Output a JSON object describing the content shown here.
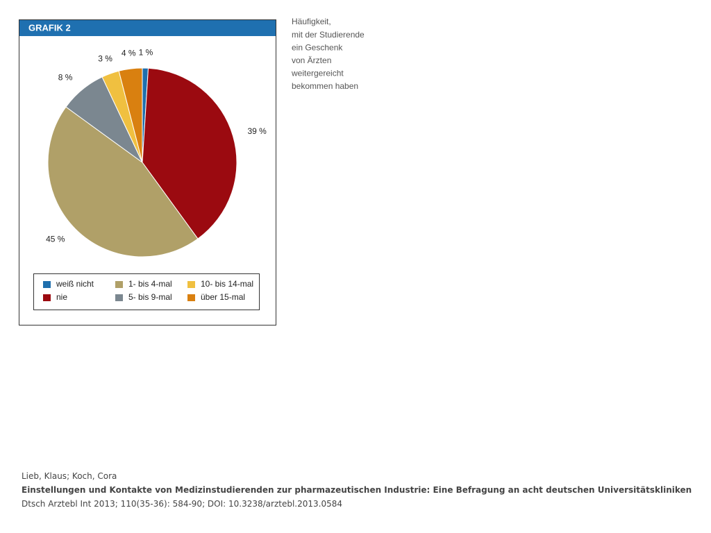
{
  "chart_data": {
    "type": "pie",
    "title": "GRAFIK 2",
    "annotation_lines": [
      "Häufigkeit,",
      "mit der Studierende",
      "ein Geschenk",
      "von Ärzten",
      "weitergereicht",
      "bekommen haben"
    ],
    "categories": [
      "weiß nicht",
      "nie",
      "1- bis 4-mal",
      "5- bis 9-mal",
      "10- bis 14-mal",
      "über 15-mal"
    ],
    "values": [
      1,
      39,
      45,
      8,
      3,
      4
    ],
    "value_labels": [
      "1 %",
      "39 %",
      "45 %",
      "8 %",
      "3 %",
      "4 %"
    ],
    "colors": [
      "#1f6fad",
      "#9b0a10",
      "#b0a068",
      "#7b8790",
      "#f0c040",
      "#d98010"
    ],
    "legend": "bottom"
  },
  "citation": {
    "authors": "Lieb, Klaus; Koch, Cora",
    "title": "Einstellungen und Kontakte von Medizinstudierenden zur pharmazeutischen Industrie: Eine Befragung an acht deutschen Universitätskliniken",
    "source": "Dtsch Arztebl Int 2013; 110(35-36): 584-90; DOI: 10.3238/arztebl.2013.0584"
  }
}
